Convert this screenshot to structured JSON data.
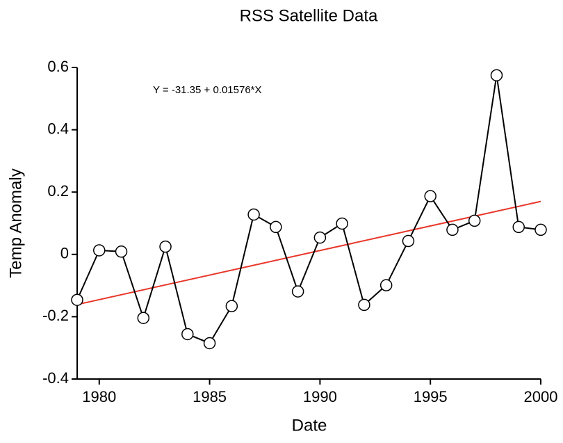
{
  "chart_data": {
    "type": "line",
    "title": "RSS Satellite Data",
    "x_label": "Date",
    "y_label": "Temp Anomaly",
    "annotation": "Y = -31.35 + 0.01576*X",
    "fit": {
      "intercept": -31.35,
      "slope": 0.01576,
      "color": "#e8372a"
    },
    "x": [
      1979,
      1980,
      1981,
      1982,
      1983,
      1984,
      1985,
      1986,
      1987,
      1988,
      1989,
      1990,
      1991,
      1992,
      1993,
      1994,
      1995,
      1996,
      1997,
      1998,
      1999,
      2000
    ],
    "values": [
      -0.146,
      0.013,
      0.009,
      -0.204,
      0.025,
      -0.256,
      -0.285,
      -0.166,
      0.128,
      0.088,
      -0.119,
      0.054,
      0.099,
      -0.162,
      -0.099,
      0.043,
      0.187,
      0.079,
      0.108,
      0.575,
      0.088,
      0.079
    ],
    "color": "#000000",
    "xlim": [
      1979,
      2000
    ],
    "xticks": [
      1980,
      1985,
      1990,
      1995,
      2000
    ],
    "ylim": [
      -0.4,
      0.6
    ],
    "yticks": [
      -0.4,
      -0.2,
      0,
      0.2,
      0.4,
      0.6
    ]
  }
}
